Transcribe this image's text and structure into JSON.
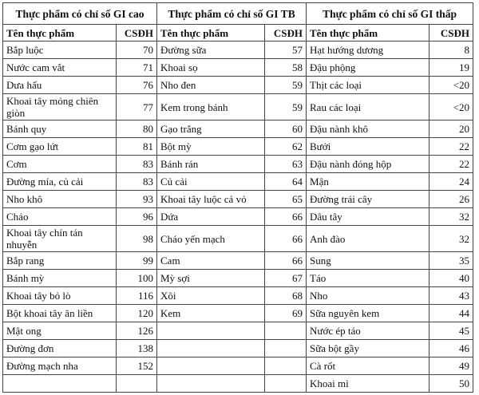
{
  "groups": [
    {
      "title": "Thực phẩm có chỉ số GI cao",
      "headers": [
        "Tên thực phẩm",
        "CSĐH"
      ],
      "rows": [
        [
          "Bắp luộc",
          70
        ],
        [
          "Nước cam vắt",
          71
        ],
        [
          "Dưa hấu",
          76
        ],
        [
          "Khoai tây mỏng chiên giòn",
          77
        ],
        [
          "Bánh quy",
          80
        ],
        [
          "Cơm gạo lứt",
          81
        ],
        [
          "Cơm",
          83
        ],
        [
          "Đường mía, củ cải",
          83
        ],
        [
          "Nho khô",
          93
        ],
        [
          "Cháo",
          96
        ],
        [
          "Khoai tây chín tán nhuyễn",
          98
        ],
        [
          "Bắp rang",
          99
        ],
        [
          "Bánh mỳ",
          100
        ],
        [
          "Khoai tây bỏ lò",
          116
        ],
        [
          "Bột khoai tây ăn liền",
          120
        ],
        [
          "Mật ong",
          126
        ],
        [
          "Đường đơn",
          138
        ],
        [
          "Đường mạch nha",
          152
        ]
      ]
    },
    {
      "title": "Thực phẩm có chỉ số GI TB",
      "headers": [
        "Tên thực phẩm",
        "CSĐH"
      ],
      "rows": [
        [
          "Đường sữa",
          57
        ],
        [
          "Khoai sọ",
          58
        ],
        [
          "Nho đen",
          59
        ],
        [
          "Kem trong bánh",
          59
        ],
        [
          "Gạo trắng",
          60
        ],
        [
          "Bột mỳ",
          62
        ],
        [
          "Bánh rán",
          63
        ],
        [
          "Củ cải",
          64
        ],
        [
          "Khoai tây luộc cả vỏ",
          65
        ],
        [
          "Dứa",
          66
        ],
        [
          "Cháo yến mạch",
          66
        ],
        [
          "Cam",
          66
        ],
        [
          "Mỳ sợi",
          67
        ],
        [
          "Xôi",
          68
        ],
        [
          "Kem",
          69
        ]
      ]
    },
    {
      "title": "Thực phẩm có chỉ số GI thấp",
      "headers": [
        "Tên thực phẩm",
        "CSĐH"
      ],
      "rows": [
        [
          "Hạt hướng dương",
          8
        ],
        [
          "Đậu phộng",
          19
        ],
        [
          "Thịt các loại",
          "<20"
        ],
        [
          "Rau các loại",
          "<20"
        ],
        [
          "Đậu nành khô",
          20
        ],
        [
          "Bưởi",
          22
        ],
        [
          "Đậu nành đóng hộp",
          22
        ],
        [
          "Mận",
          24
        ],
        [
          "Đường trái cây",
          26
        ],
        [
          "Dâu tây",
          32
        ],
        [
          "Anh đào",
          32
        ],
        [
          "Sung",
          35
        ],
        [
          "Táo",
          40
        ],
        [
          "Nho",
          43
        ],
        [
          "Sữa nguyên kem",
          44
        ],
        [
          "Nước ép táo",
          45
        ],
        [
          "Sữa bột gầy",
          46
        ],
        [
          "Cà rốt",
          49
        ],
        [
          "Khoai mì",
          50
        ]
      ]
    }
  ]
}
